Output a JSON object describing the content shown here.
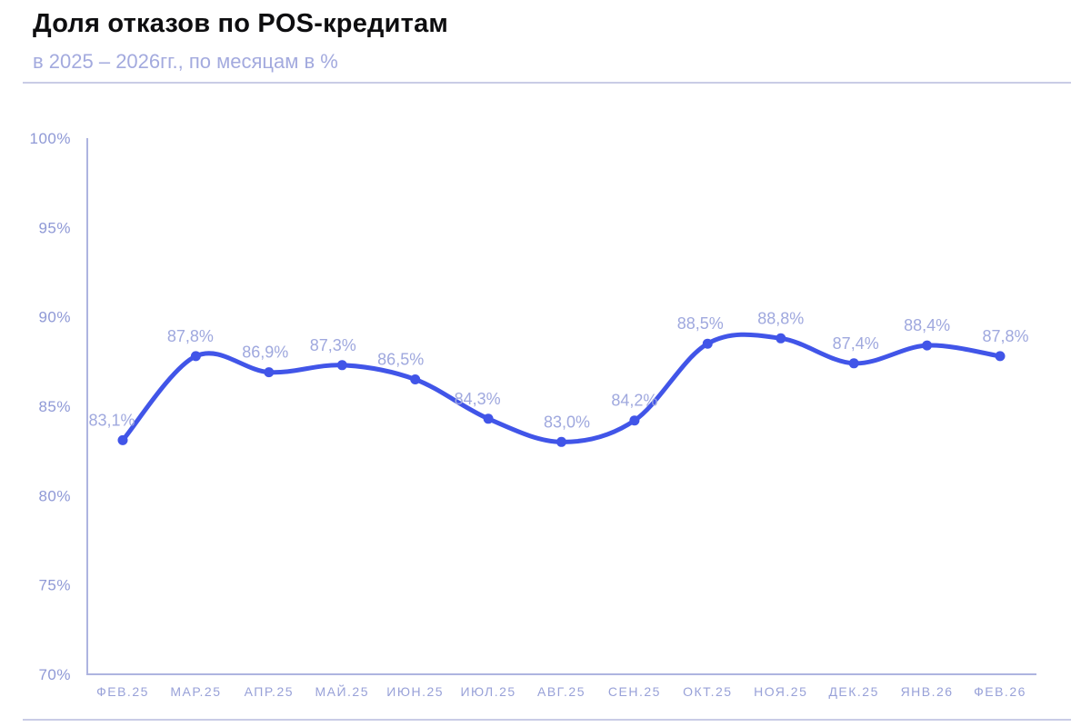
{
  "chart_data": {
    "type": "line",
    "title": "Доля отказов по POS-кредитам",
    "subtitle": "в 2025 – 2026гг., по месяцам в %",
    "categories": [
      "ФЕВ.25",
      "МАР.25",
      "АПР.25",
      "МАЙ.25",
      "ИЮН.25",
      "ИЮЛ.25",
      "АВГ.25",
      "СЕН.25",
      "ОКТ.25",
      "НОЯ.25",
      "ДЕК.25",
      "ЯНВ.26",
      "ФЕВ.26"
    ],
    "values": [
      83.1,
      87.8,
      86.9,
      87.3,
      86.5,
      84.3,
      83.0,
      84.2,
      88.5,
      88.8,
      87.4,
      88.4,
      87.8
    ],
    "point_labels": [
      "83,1%",
      "87,8%",
      "86,9%",
      "87,3%",
      "86,5%",
      "84,3%",
      "83,0%",
      "84,2%",
      "88,5%",
      "88,8%",
      "87,4%",
      "88,4%",
      "87,8%"
    ],
    "y_tick_labels": [
      "100%",
      "95%",
      "90%",
      "85%",
      "80%",
      "75%",
      "70%"
    ],
    "y_tick_values": [
      100,
      95,
      90,
      85,
      80,
      75,
      70
    ],
    "ylim": [
      70,
      100
    ],
    "xlabel": "",
    "ylabel": "",
    "grid": false,
    "legend": "none",
    "line_smoothed": true,
    "colors": {
      "line": "#4155e8",
      "marker": "#4155e8",
      "axis": "#aeb4e0",
      "y_tick_label": "#8f99d6",
      "x_tick_label": "#98a1d8",
      "point_label": "#9fa8de",
      "title": "#0e0e10",
      "subtitle": "#a3aade",
      "divider": "#c9cce6",
      "background": "#ffffff"
    }
  }
}
